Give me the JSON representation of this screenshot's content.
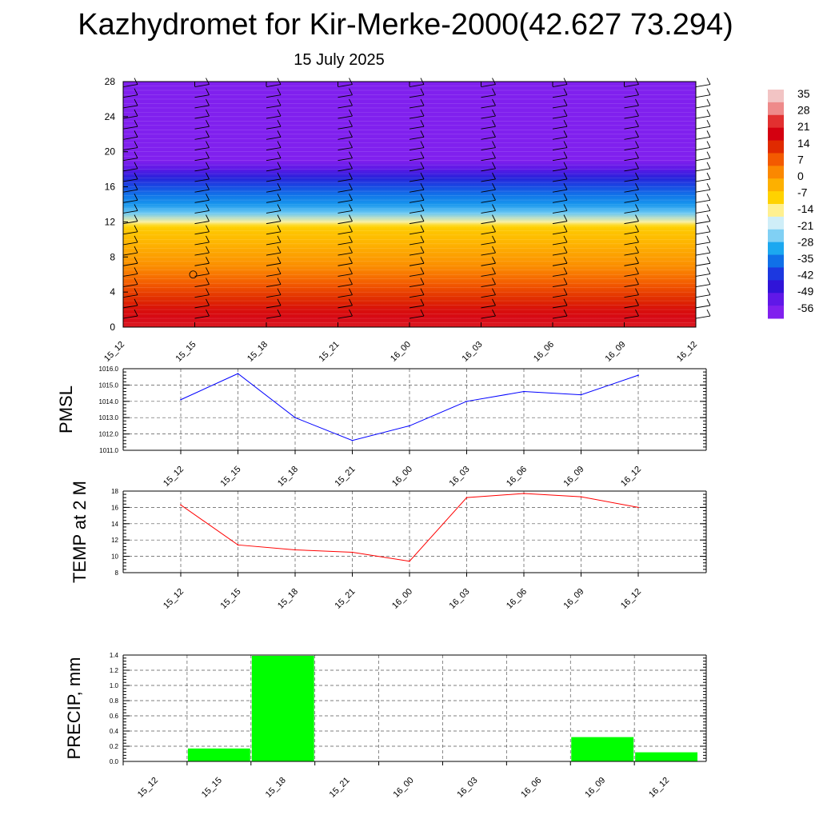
{
  "header": {
    "title": "Kazhydromet for Kir-Merke-2000(42.627 73.294)",
    "date": "15 July 2025"
  },
  "chart_data": [
    {
      "type": "heatmap",
      "name": "upper-air cross-section",
      "x_ticks": [
        "15_12",
        "15_15",
        "15_18",
        "15_21",
        "16_00",
        "16_03",
        "16_06",
        "16_09",
        "16_12"
      ],
      "y_ticks": [
        "0",
        "4",
        "8",
        "12",
        "16",
        "20",
        "24",
        "28"
      ],
      "ylim": [
        0,
        28
      ],
      "colorbar_labels": [
        "35",
        "28",
        "21",
        "14",
        "7",
        "0",
        "-7",
        "-14",
        "-21",
        "-28",
        "-35",
        "-42",
        "-49",
        "-56"
      ],
      "colorbar_colors": [
        "#f2c4c4",
        "#ee8a8a",
        "#e23030",
        "#d40010",
        "#e02a00",
        "#f35a00",
        "#fb8800",
        "#fdb000",
        "#ffd200",
        "#fff090",
        "#cfeef8",
        "#80d0f4",
        "#1ca8f0",
        "#1070e8",
        "#1c38e0",
        "#3014d8",
        "#6018e8",
        "#8020ee"
      ],
      "colorbar_range": [
        -56,
        35
      ],
      "profile_levels": [
        0,
        1,
        2,
        3,
        4,
        5,
        6,
        7,
        8,
        9,
        10,
        11,
        11.5,
        12,
        13,
        14,
        15,
        16,
        17,
        18,
        19,
        19.5,
        20,
        21,
        22,
        23,
        28
      ],
      "profile_values": [
        22,
        20,
        17,
        14,
        11,
        8,
        5,
        2,
        0,
        -2,
        -4,
        -6,
        -8,
        -14,
        -25,
        -31,
        -34,
        -38,
        -43,
        -50,
        -56,
        -58,
        -57,
        -62,
        -66,
        -68,
        -70
      ],
      "grid": false
    },
    {
      "type": "line",
      "ylabel": "PMSL",
      "x_ticks": [
        "15_12",
        "15_15",
        "15_18",
        "15_21",
        "16_00",
        "16_03",
        "16_06",
        "16_09",
        "16_12"
      ],
      "y_ticks": [
        "1011.0",
        "1012.0",
        "1013.0",
        "1014.0",
        "1015.0",
        "1016.0"
      ],
      "ylim": [
        1011,
        1016
      ],
      "series": [
        {
          "values": [
            1014.1,
            1015.7,
            1013.0,
            1011.6,
            1012.5,
            1014.0,
            1014.6,
            1014.4,
            1015.6
          ],
          "color": "#0000ff"
        }
      ],
      "grid": true
    },
    {
      "type": "line",
      "ylabel": "TEMP at 2 M",
      "x_ticks": [
        "15_12",
        "15_15",
        "15_18",
        "15_21",
        "16_00",
        "16_03",
        "16_06",
        "16_09",
        "16_12"
      ],
      "y_ticks": [
        "8",
        "10",
        "12",
        "14",
        "16",
        "18"
      ],
      "ylim": [
        8,
        18
      ],
      "series": [
        {
          "values": [
            16.3,
            11.4,
            10.8,
            10.5,
            9.4,
            17.2,
            17.7,
            17.3,
            16.0
          ],
          "color": "#ff0000"
        }
      ],
      "grid": true
    },
    {
      "type": "bar",
      "ylabel": "PRECIP, mm",
      "x_ticks": [
        "15_12",
        "15_15",
        "15_18",
        "15_21",
        "16_00",
        "16_03",
        "16_06",
        "16_09",
        "16_12"
      ],
      "y_ticks": [
        "0.0",
        "0.2",
        "0.4",
        "0.6",
        "0.8",
        "1.0",
        "1.2",
        "1.4"
      ],
      "ylim": [
        0,
        1.4
      ],
      "values": [
        0,
        0.17,
        1.39,
        0,
        0,
        0,
        0,
        0.32,
        0.12
      ],
      "color": "#00ff00",
      "grid": true
    }
  ]
}
